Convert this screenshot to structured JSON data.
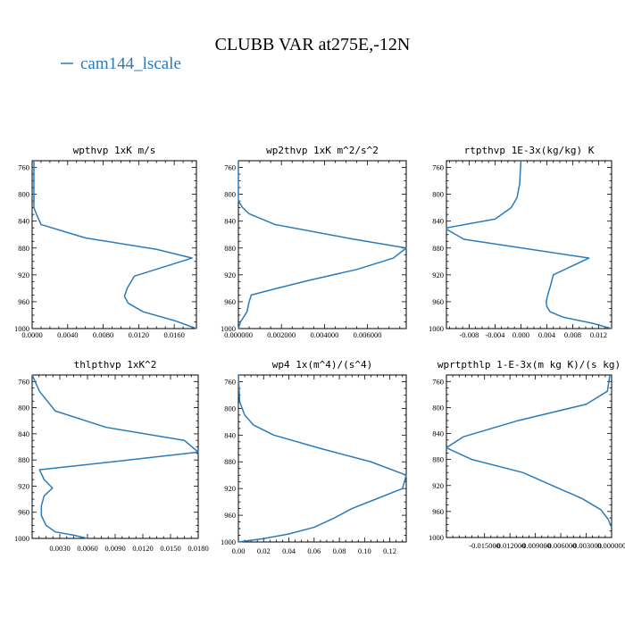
{
  "title": "CLUBB VAR at275E,-12N",
  "legend": {
    "label": "cam144_lscale",
    "color": "#2b7bb9"
  },
  "chart_data": [
    {
      "type": "line",
      "title": "wpthvp  1xK m/s",
      "series_name": "cam144_lscale",
      "xlim": [
        0,
        0.0185
      ],
      "ylim": [
        1000,
        750
      ],
      "xticks": [
        0.0,
        0.004,
        0.008,
        0.012,
        0.016
      ],
      "xtick_labels": [
        "0.0000",
        "0.0040",
        "0.0080",
        "0.0120",
        "0.0160"
      ],
      "yticks": [
        760,
        800,
        840,
        880,
        920,
        960,
        1000
      ],
      "ytick_labels": [
        "760",
        "800",
        "840",
        "880",
        "920",
        "960",
        "1000"
      ],
      "x": [
        0.0002,
        0.0002,
        0.0002,
        0.0002,
        0.0002,
        0.0005,
        0.001,
        0.006,
        0.014,
        0.018,
        0.0115,
        0.0107,
        0.0104,
        0.0108,
        0.0125,
        0.016,
        0.0185
      ],
      "y": [
        750,
        790,
        800,
        810,
        820,
        830,
        845,
        865,
        882,
        895,
        922,
        940,
        952,
        962,
        975,
        988,
        1000
      ]
    },
    {
      "type": "line",
      "title": "wp2thvp  1xK m^2/s^2",
      "series_name": "cam144_lscale",
      "xlim": [
        0,
        0.0078
      ],
      "ylim": [
        1000,
        750
      ],
      "xticks": [
        0.0,
        0.002,
        0.004,
        0.006
      ],
      "xtick_labels": [
        "0.000000",
        "0.002000",
        "0.004000",
        "0.006000"
      ],
      "yticks": [
        760,
        800,
        840,
        880,
        920,
        960,
        1000
      ],
      "ytick_labels": [
        "760",
        "800",
        "840",
        "880",
        "920",
        "960",
        "1000"
      ],
      "x": [
        0.0,
        0.0,
        0.0002,
        0.0005,
        0.0017,
        0.0052,
        0.0078,
        0.0072,
        0.0055,
        0.0033,
        0.0018,
        0.0006,
        0.0005,
        0.0004,
        0.0001,
        0.0
      ],
      "y": [
        750,
        810,
        820,
        829,
        845,
        866,
        880,
        895,
        912,
        928,
        940,
        950,
        960,
        975,
        990,
        1000
      ]
    },
    {
      "type": "line",
      "title": "rtpthvp  1E-3x(kg/kg) K",
      "series_name": "cam144_lscale",
      "xlim": [
        -0.0115,
        0.014
      ],
      "ylim": [
        1000,
        750
      ],
      "xticks": [
        -0.008,
        -0.004,
        0.0,
        0.004,
        0.008,
        0.012
      ],
      "xtick_labels": [
        "-0.008",
        "-0.004",
        "0.000",
        "0.004",
        "0.008",
        "0.012"
      ],
      "yticks": [
        760,
        800,
        840,
        880,
        920,
        960,
        1000
      ],
      "ytick_labels": [
        "760",
        "800",
        "840",
        "880",
        "920",
        "960",
        "1000"
      ],
      "x": [
        0.0,
        -0.0002,
        -0.0006,
        -0.0015,
        -0.004,
        -0.0115,
        -0.0115,
        -0.0088,
        0.0105,
        0.005,
        0.0046,
        0.0042,
        0.0039,
        0.004,
        0.0045,
        0.0065,
        0.011,
        0.014
      ],
      "y": [
        750,
        785,
        805,
        820,
        837,
        850,
        852,
        867,
        895,
        920,
        935,
        948,
        960,
        967,
        975,
        983,
        992,
        1000
      ]
    },
    {
      "type": "line",
      "title": "thlpthvp  1xK^2",
      "series_name": "cam144_lscale",
      "xlim": [
        0,
        0.018
      ],
      "ylim": [
        1000,
        750
      ],
      "xticks": [
        0.003,
        0.006,
        0.009,
        0.012,
        0.015,
        0.018
      ],
      "xtick_labels": [
        "0.0030",
        "0.0060",
        "0.0090",
        "0.0120",
        "0.0150",
        "0.0180"
      ],
      "yticks": [
        760,
        800,
        840,
        880,
        920,
        960,
        1000
      ],
      "ytick_labels": [
        "760",
        "800",
        "840",
        "880",
        "920",
        "960",
        "1000"
      ],
      "x": [
        0.0,
        0.0008,
        0.0025,
        0.008,
        0.0165,
        0.018,
        0.0105,
        0.0008,
        0.0013,
        0.0022,
        0.0013,
        0.001,
        0.001,
        0.0015,
        0.0025,
        0.0045,
        0.006
      ],
      "y": [
        750,
        775,
        805,
        830,
        850,
        868,
        880,
        895,
        910,
        923,
        935,
        950,
        965,
        980,
        990,
        995,
        1000
      ]
    },
    {
      "type": "line",
      "title": "wp4  1x(m^4)/(s^4)",
      "series_name": "cam144_lscale",
      "xlim": [
        0,
        0.133
      ],
      "ylim": [
        1000,
        750
      ],
      "xticks": [
        0.0,
        0.02,
        0.04,
        0.06,
        0.08,
        0.1,
        0.12
      ],
      "xtick_labels": [
        "0.00",
        "0.02",
        "0.04",
        "0.06",
        "0.08",
        "0.10",
        "0.12"
      ],
      "yticks": [
        760,
        800,
        840,
        880,
        920,
        960,
        1000
      ],
      "ytick_labels": [
        "760",
        "800",
        "840",
        "880",
        "920",
        "960",
        "1000"
      ],
      "x": [
        0.0,
        0.001,
        0.005,
        0.012,
        0.028,
        0.065,
        0.105,
        0.133,
        0.13,
        0.11,
        0.09,
        0.075,
        0.06,
        0.04,
        0.02,
        0.0
      ],
      "y": [
        750,
        790,
        810,
        825,
        840,
        860,
        880,
        900,
        920,
        935,
        950,
        965,
        978,
        988,
        995,
        1000
      ]
    },
    {
      "type": "line",
      "title": "wprtpthlp  1-E-3x(m kg K)/(s kg)",
      "series_name": "cam144_lscale",
      "xlim": [
        -0.0195,
        0.0
      ],
      "ylim": [
        1000,
        750
      ],
      "xticks": [
        -0.015,
        -0.012,
        -0.009,
        -0.006,
        -0.003,
        0.0
      ],
      "xtick_labels": [
        "-0.015000",
        "-0.012000",
        "-0.009000",
        "-0.006000",
        "-0.003000",
        "0.000000"
      ],
      "yticks": [
        760,
        800,
        840,
        880,
        920,
        960,
        1000
      ],
      "ytick_labels": [
        "760",
        "800",
        "840",
        "880",
        "920",
        "960",
        "1000"
      ],
      "x": [
        -0.0002,
        -0.0005,
        -0.003,
        -0.011,
        -0.0175,
        -0.0195,
        -0.0165,
        -0.0105,
        -0.007,
        -0.0035,
        -0.0013,
        -0.0004,
        0.0
      ],
      "y": [
        750,
        775,
        795,
        820,
        845,
        862,
        880,
        900,
        920,
        940,
        957,
        972,
        985
      ]
    }
  ]
}
